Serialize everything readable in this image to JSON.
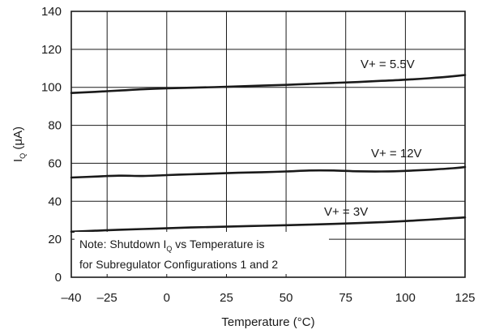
{
  "chart_data": {
    "type": "line",
    "xlabel": "Temperature (°C)",
    "ylabel": {
      "main": "I",
      "sub": "Q",
      "unit": " (μA)"
    },
    "xlim": [
      -40,
      125
    ],
    "ylim": [
      0,
      140
    ],
    "x_ticks": [
      -40,
      -25,
      0,
      25,
      50,
      75,
      100,
      125
    ],
    "x_tick_labels": [
      "–40",
      "–25",
      "0",
      "25",
      "50",
      "75",
      "100",
      "125"
    ],
    "y_ticks": [
      0,
      20,
      40,
      60,
      80,
      100,
      120,
      140
    ],
    "y_tick_labels": [
      "0",
      "20",
      "40",
      "60",
      "80",
      "100",
      "120",
      "140"
    ],
    "grid": true,
    "series": [
      {
        "name": "V+ = 5.5V",
        "x": [
          -40,
          -30,
          -20,
          -10,
          0,
          10,
          20,
          30,
          40,
          50,
          60,
          70,
          80,
          90,
          100,
          110,
          120,
          125
        ],
        "y": [
          97,
          97.6,
          98.3,
          99,
          99.5,
          99.8,
          100.1,
          100.5,
          100.9,
          101.3,
          101.8,
          102.3,
          102.8,
          103.4,
          104,
          104.8,
          105.8,
          106.5
        ]
      },
      {
        "name": "V+ = 12V",
        "x": [
          -40,
          -30,
          -20,
          -10,
          0,
          10,
          20,
          30,
          40,
          50,
          60,
          70,
          80,
          90,
          100,
          110,
          120,
          125
        ],
        "y": [
          52.5,
          53,
          53.5,
          53.3,
          53.8,
          54.2,
          54.6,
          55,
          55.3,
          55.7,
          56.2,
          56.2,
          55.8,
          55.7,
          56,
          56.6,
          57.4,
          58
        ]
      },
      {
        "name": "V+ = 3V",
        "x": [
          -40,
          -30,
          -20,
          -10,
          0,
          10,
          20,
          30,
          40,
          50,
          60,
          70,
          80,
          90,
          100,
          110,
          120,
          125
        ],
        "y": [
          24,
          24.5,
          25,
          25.4,
          25.8,
          26.2,
          26.5,
          26.8,
          27.1,
          27.4,
          27.7,
          28.1,
          28.5,
          29,
          29.6,
          30.3,
          31.1,
          31.5
        ]
      }
    ],
    "series_labels": [
      {
        "text": "V+ = 5.5V"
      },
      {
        "text": "V+ = 12V"
      },
      {
        "text": "V+ = 3V"
      }
    ],
    "annotation": {
      "line1_pre": "Note: Shutdown I",
      "line1_sub": "Q",
      "line1_post": " vs Temperature is",
      "line2": "for Subregulator Configurations 1 and 2"
    }
  }
}
